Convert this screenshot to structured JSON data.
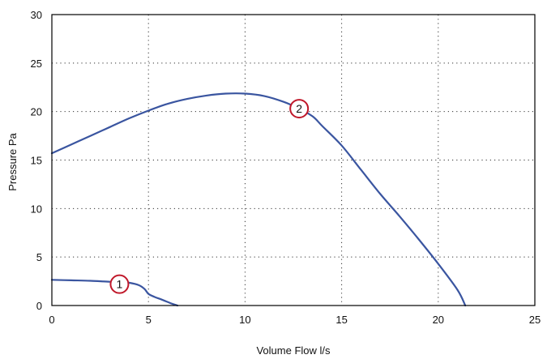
{
  "chart_data": {
    "type": "line",
    "xlabel": "Volume Flow l/s",
    "ylabel": "Pressure Pa",
    "xlim": [
      0,
      25
    ],
    "ylim": [
      0,
      30
    ],
    "x_ticks": [
      "0",
      "5",
      "10",
      "15",
      "20",
      "25"
    ],
    "y_ticks": [
      "0",
      "5",
      "10",
      "15",
      "20",
      "25",
      "30"
    ],
    "grid": "dotted",
    "line_color": "#3a55a0",
    "marker_color": "#c0182a",
    "series": [
      {
        "name": "1",
        "x": [
          0,
          1,
          2,
          3,
          3.5,
          4,
          4.5,
          4.8,
          5.0,
          5.3,
          5.7,
          6.2,
          6.5
        ],
        "y": [
          2.65,
          2.6,
          2.55,
          2.45,
          2.45,
          2.35,
          2.1,
          1.7,
          1.2,
          0.9,
          0.6,
          0.2,
          0
        ],
        "marker": {
          "x": 3.5,
          "y": 2.2
        }
      },
      {
        "name": "2",
        "x": [
          0,
          1,
          2,
          3,
          4,
          5,
          6,
          7,
          8,
          9,
          10,
          11,
          12,
          12.8,
          13.5,
          14,
          15,
          16,
          17,
          18,
          19,
          20,
          21,
          21.4
        ],
        "y": [
          15.7,
          16.6,
          17.5,
          18.4,
          19.3,
          20.1,
          20.8,
          21.3,
          21.65,
          21.85,
          21.85,
          21.6,
          21.0,
          20.3,
          19.5,
          18.5,
          16.5,
          14.0,
          11.5,
          9.2,
          6.8,
          4.3,
          1.6,
          0
        ],
        "marker": {
          "x": 12.8,
          "y": 20.3
        }
      }
    ]
  }
}
